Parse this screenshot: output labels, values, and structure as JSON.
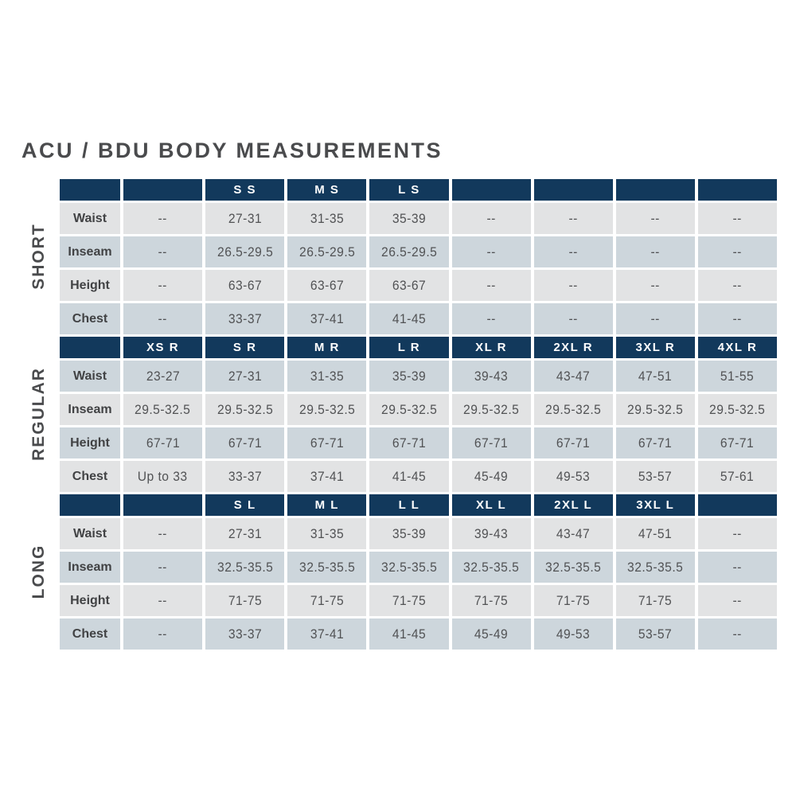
{
  "title": "ACU / BDU BODY MEASUREMENTS",
  "empty_value": "--",
  "colors": {
    "navy_header": "#12395c",
    "row_light": "#e2e3e4",
    "row_blue": "#cdd6dc",
    "title_text": "#4a4b4d",
    "row_label_text": "#414244",
    "cell_text": "#515254",
    "header_text": "#ffffff"
  },
  "chart_data": {
    "type": "table",
    "title": "ACU / BDU BODY MEASUREMENTS",
    "row_headers": [
      "Waist",
      "Inseam",
      "Height",
      "Chest"
    ],
    "sections": [
      {
        "name": "SHORT",
        "columns": [
          "",
          "",
          "S S",
          "M S",
          "L S",
          "",
          "",
          "",
          ""
        ],
        "rows": [
          {
            "label": "Waist",
            "values": [
              "--",
              "27-31",
              "31-35",
              "35-39",
              "--",
              "--",
              "--",
              "--"
            ]
          },
          {
            "label": "Inseam",
            "values": [
              "--",
              "26.5-29.5",
              "26.5-29.5",
              "26.5-29.5",
              "--",
              "--",
              "--",
              "--"
            ]
          },
          {
            "label": "Height",
            "values": [
              "--",
              "63-67",
              "63-67",
              "63-67",
              "--",
              "--",
              "--",
              "--"
            ]
          },
          {
            "label": "Chest",
            "values": [
              "--",
              "33-37",
              "37-41",
              "41-45",
              "--",
              "--",
              "--",
              "--"
            ]
          }
        ]
      },
      {
        "name": "REGULAR",
        "columns": [
          "",
          "XS R",
          "S R",
          "M R",
          "L R",
          "XL R",
          "2XL R",
          "3XL R",
          "4XL R"
        ],
        "rows": [
          {
            "label": "Waist",
            "values": [
              "23-27",
              "27-31",
              "31-35",
              "35-39",
              "39-43",
              "43-47",
              "47-51",
              "51-55"
            ]
          },
          {
            "label": "Inseam",
            "values": [
              "29.5-32.5",
              "29.5-32.5",
              "29.5-32.5",
              "29.5-32.5",
              "29.5-32.5",
              "29.5-32.5",
              "29.5-32.5",
              "29.5-32.5"
            ]
          },
          {
            "label": "Height",
            "values": [
              "67-71",
              "67-71",
              "67-71",
              "67-71",
              "67-71",
              "67-71",
              "67-71",
              "67-71"
            ]
          },
          {
            "label": "Chest",
            "values": [
              "Up to 33",
              "33-37",
              "37-41",
              "41-45",
              "45-49",
              "49-53",
              "53-57",
              "57-61"
            ]
          }
        ]
      },
      {
        "name": "LONG",
        "columns": [
          "",
          "",
          "S L",
          "M L",
          "L L",
          "XL L",
          "2XL L",
          "3XL L",
          ""
        ],
        "rows": [
          {
            "label": "Waist",
            "values": [
              "--",
              "27-31",
              "31-35",
              "35-39",
              "39-43",
              "43-47",
              "47-51",
              "--"
            ]
          },
          {
            "label": "Inseam",
            "values": [
              "--",
              "32.5-35.5",
              "32.5-35.5",
              "32.5-35.5",
              "32.5-35.5",
              "32.5-35.5",
              "32.5-35.5",
              "--"
            ]
          },
          {
            "label": "Height",
            "values": [
              "--",
              "71-75",
              "71-75",
              "71-75",
              "71-75",
              "71-75",
              "71-75",
              "--"
            ]
          },
          {
            "label": "Chest",
            "values": [
              "--",
              "33-37",
              "37-41",
              "41-45",
              "45-49",
              "49-53",
              "53-57",
              "--"
            ]
          }
        ]
      }
    ],
    "layout": {
      "section_label_x": 49,
      "section_label_centers_y": [
        322,
        520,
        718
      ]
    }
  }
}
